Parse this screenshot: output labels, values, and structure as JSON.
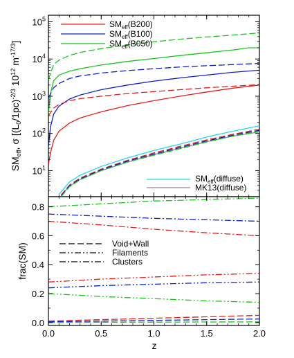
{
  "chart_data": [
    {
      "type": "line",
      "scale_y": "log",
      "xlim": [
        0,
        2
      ],
      "ylim": [
        2,
        150000
      ],
      "ylabel": "SM_eff, σ [(L_0/1pc)^-2/3 10^12 m^-17/3]",
      "y_ticks": [
        10,
        100,
        1000,
        10000,
        100000
      ],
      "y_tick_labels": [
        "10",
        "10",
        "10",
        "10",
        "10"
      ],
      "y_tick_exponents": [
        "1",
        "2",
        "3",
        "4",
        "5"
      ],
      "legend_top": [
        {
          "label_main": "SM",
          "label_sub": "eff",
          "label_rest": "(B200)",
          "color": "#e31a1c"
        },
        {
          "label_main": "SM",
          "label_sub": "eff",
          "label_rest": "(B100)",
          "color": "#0b1fc4"
        },
        {
          "label_main": "SM",
          "label_sub": "eff",
          "label_rest": "(B050)",
          "color": "#19c419"
        }
      ],
      "legend_bottom": [
        {
          "label_main": "SM",
          "label_sub": "eff",
          "label_rest": "(diffuse)",
          "color": "#1fd8e8"
        },
        {
          "label_main": "MK13(diffuse)",
          "label_sub": "",
          "label_rest": "",
          "color": "#8a8a8a"
        }
      ],
      "series": [
        {
          "color": "#19c419",
          "style": "dashed",
          "x": [
            0.0,
            0.05,
            0.1,
            0.2,
            0.3,
            0.5,
            0.75,
            1.0,
            1.25,
            1.5,
            1.75,
            2.0
          ],
          "y": [
            2800,
            7200,
            9300,
            12500,
            15000,
            19000,
            24000,
            29000,
            34000,
            39000,
            44000,
            50000
          ]
        },
        {
          "color": "#19c419",
          "style": "solid",
          "x": [
            0.0,
            0.02,
            0.05,
            0.1,
            0.2,
            0.3,
            0.5,
            0.75,
            1.0,
            1.25,
            1.5,
            1.75,
            1.9,
            2.0
          ],
          "y": [
            350,
            1200,
            2600,
            3700,
            4700,
            5500,
            6900,
            8600,
            10300,
            12400,
            14700,
            17500,
            20000,
            20000
          ]
        },
        {
          "color": "#0b1fc4",
          "style": "dashed",
          "x": [
            0.0,
            0.05,
            0.1,
            0.2,
            0.3,
            0.5,
            0.75,
            1.0,
            1.25,
            1.5,
            1.75,
            2.0
          ],
          "y": [
            900,
            1700,
            2200,
            3000,
            3500,
            4200,
            4900,
            5500,
            6100,
            6600,
            7100,
            7600
          ]
        },
        {
          "color": "#0b1fc4",
          "style": "solid",
          "x": [
            0.0,
            0.02,
            0.05,
            0.1,
            0.2,
            0.3,
            0.5,
            0.75,
            1.0,
            1.25,
            1.5,
            1.75,
            2.0
          ],
          "y": [
            45,
            150,
            330,
            540,
            840,
            1080,
            1500,
            2000,
            2550,
            3100,
            3700,
            4400,
            5000
          ]
        },
        {
          "color": "#e31a1c",
          "style": "dashed",
          "x": [
            0.0,
            0.05,
            0.1,
            0.2,
            0.3,
            0.5,
            0.75,
            1.0,
            1.25,
            1.5,
            1.75,
            2.0
          ],
          "y": [
            300,
            480,
            600,
            760,
            860,
            1000,
            1180,
            1330,
            1500,
            1680,
            1860,
            2050
          ]
        },
        {
          "color": "#e31a1c",
          "style": "solid",
          "x": [
            0.0,
            0.02,
            0.05,
            0.1,
            0.2,
            0.3,
            0.5,
            0.75,
            1.0,
            1.25,
            1.5,
            1.75,
            2.0
          ],
          "y": [
            15,
            30,
            65,
            115,
            190,
            260,
            380,
            560,
            760,
            1000,
            1300,
            1650,
            2000
          ]
        },
        {
          "color": "#1fd8e8",
          "style": "solid",
          "x": [
            0.1,
            0.2,
            0.3,
            0.5,
            0.75,
            1.0,
            1.25,
            1.5,
            1.75,
            2.0
          ],
          "y": [
            2.3,
            5.0,
            7.5,
            13,
            22,
            35,
            52,
            80,
            115,
            160
          ]
        },
        {
          "color": "#8a8a8a",
          "style": "solid",
          "x": [
            0.12,
            0.2,
            0.3,
            0.5,
            0.75,
            1.0,
            1.25,
            1.5,
            1.75,
            2.0
          ],
          "y": [
            2.2,
            3.8,
            5.8,
            10,
            17,
            27,
            40,
            60,
            85,
            110
          ]
        },
        {
          "color": "#e31a1c",
          "style": "dashed",
          "x": [
            0.12,
            0.2,
            0.3,
            0.5,
            0.75,
            1.0,
            1.25,
            1.5,
            1.75,
            2.0
          ],
          "y": [
            2.2,
            4.1,
            6.3,
            11,
            19,
            30,
            45,
            67,
            95,
            130
          ]
        },
        {
          "color": "#0b1fc4",
          "style": "dashed",
          "x": [
            0.12,
            0.2,
            0.3,
            0.5,
            0.75,
            1.0,
            1.25,
            1.5,
            1.75,
            2.0
          ],
          "y": [
            2.1,
            3.9,
            6.0,
            10.5,
            18,
            28,
            42,
            63,
            90,
            122
          ]
        },
        {
          "color": "#19c419",
          "style": "dashed",
          "x": [
            0.12,
            0.2,
            0.3,
            0.5,
            0.75,
            1.0,
            1.25,
            1.5,
            1.75,
            2.0
          ],
          "y": [
            2.0,
            3.7,
            5.7,
            10,
            17,
            26,
            39,
            59,
            85,
            115
          ]
        }
      ]
    },
    {
      "type": "line",
      "xlim": [
        0,
        2
      ],
      "ylim": [
        -0.02,
        0.87
      ],
      "xlabel": "z",
      "ylabel": "frac(SM)",
      "x_ticks": [
        0.0,
        0.5,
        1.0,
        1.5,
        2.0
      ],
      "x_tick_labels": [
        "0.0",
        "0.5",
        "1.0",
        "1.5",
        "2.0"
      ],
      "y_ticks": [
        0.0,
        0.2,
        0.4,
        0.6,
        0.8
      ],
      "y_tick_labels": [
        "0.0",
        "0.2",
        "0.4",
        "0.6",
        "0.8"
      ],
      "legend": [
        {
          "label": "Void+Wall",
          "style": "dashed"
        },
        {
          "label": "Filaments",
          "style": "dashdotdot"
        },
        {
          "label": "Clusters",
          "style": "dashdot"
        }
      ],
      "series": [
        {
          "color": "#19c419",
          "style": "dashdot",
          "x": [
            0,
            0.5,
            1.0,
            1.5,
            2.0
          ],
          "y": [
            0.8,
            0.82,
            0.84,
            0.85,
            0.86
          ]
        },
        {
          "color": "#0b1fc4",
          "style": "dashdot",
          "x": [
            0,
            0.5,
            1.0,
            1.5,
            2.0
          ],
          "y": [
            0.75,
            0.735,
            0.72,
            0.71,
            0.7
          ]
        },
        {
          "color": "#e31a1c",
          "style": "dashdot",
          "x": [
            0,
            0.5,
            1.0,
            1.5,
            2.0
          ],
          "y": [
            0.7,
            0.675,
            0.645,
            0.62,
            0.6
          ]
        },
        {
          "color": "#e31a1c",
          "style": "dashdotdot",
          "x": [
            0,
            0.5,
            1.0,
            1.5,
            2.0
          ],
          "y": [
            0.28,
            0.3,
            0.315,
            0.33,
            0.34
          ]
        },
        {
          "color": "#0b1fc4",
          "style": "dashdotdot",
          "x": [
            0,
            0.5,
            1.0,
            1.5,
            2.0
          ],
          "y": [
            0.24,
            0.255,
            0.265,
            0.275,
            0.28
          ]
        },
        {
          "color": "#19c419",
          "style": "dashdotdot",
          "x": [
            0,
            0.5,
            1.0,
            1.5,
            2.0
          ],
          "y": [
            0.2,
            0.18,
            0.165,
            0.15,
            0.14
          ]
        },
        {
          "color": "#e31a1c",
          "style": "dashed",
          "x": [
            0,
            0.5,
            1.0,
            1.5,
            2.0
          ],
          "y": [
            0.01,
            0.02,
            0.03,
            0.04,
            0.05
          ]
        },
        {
          "color": "#0b1fc4",
          "style": "dashed",
          "x": [
            0,
            0.5,
            1.0,
            1.5,
            2.0
          ],
          "y": [
            0.005,
            0.01,
            0.015,
            0.02,
            0.025
          ]
        },
        {
          "color": "#19c419",
          "style": "dashed",
          "x": [
            0,
            0.5,
            1.0,
            1.5,
            2.0
          ],
          "y": [
            0.0,
            0.002,
            0.003,
            0.004,
            0.005
          ]
        }
      ]
    }
  ]
}
